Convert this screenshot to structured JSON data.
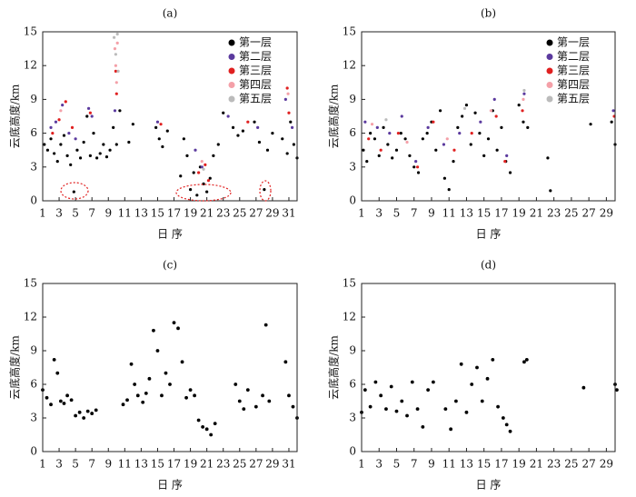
{
  "chart_data": [
    {
      "type": "scatter",
      "title": "(a)",
      "ylabel": "云底高度/km",
      "xlabel": "日 序",
      "xlim": [
        1,
        32
      ],
      "ylim": [
        0,
        15
      ],
      "xticks": [
        1,
        3,
        5,
        7,
        9,
        11,
        13,
        15,
        17,
        19,
        21,
        23,
        25,
        27,
        29,
        31
      ],
      "yticks": [
        0,
        3,
        6,
        9,
        12,
        15
      ],
      "legend": "upper right",
      "series": [
        {
          "name": "第一层",
          "color": "#000000",
          "x": [
            1.2,
            1.6,
            2.0,
            2.4,
            2.8,
            3.2,
            3.6,
            4.0,
            4.4,
            4.8,
            5.2,
            5.6,
            6.0,
            6.4,
            6.8,
            7.2,
            7.6,
            8.0,
            8.4,
            8.8,
            9.2,
            9.6,
            10.0,
            10.4,
            11.5,
            12.0,
            14.8,
            15.2,
            15.6,
            16.2,
            17.8,
            18.2,
            18.6,
            19.0,
            19.4,
            19.8,
            20.2,
            20.6,
            21.0,
            21.4,
            21.8,
            22.4,
            23.0,
            24.2,
            24.8,
            25.4,
            26.8,
            27.4,
            28.0,
            28.4,
            29.0,
            30.2,
            30.8,
            31.2,
            31.6,
            32.0
          ],
          "values": [
            5.0,
            4.5,
            5.5,
            4.2,
            3.5,
            5.0,
            5.8,
            4.0,
            3.2,
            0.8,
            4.5,
            3.8,
            5.2,
            7.5,
            4.0,
            6.0,
            3.8,
            4.2,
            5.0,
            3.9,
            4.5,
            6.5,
            5.0,
            8.0,
            5.2,
            6.8,
            6.5,
            5.5,
            4.8,
            6.2,
            2.2,
            5.5,
            4.0,
            1.0,
            2.5,
            0.5,
            3.0,
            1.5,
            0.8,
            2.0,
            4.0,
            5.0,
            7.8,
            6.5,
            5.8,
            6.2,
            7.0,
            5.2,
            1.0,
            4.5,
            6.0,
            5.5,
            4.2,
            7.0,
            5.0,
            3.8
          ]
        },
        {
          "name": "第二层",
          "color": "#5b3a9e",
          "x": [
            2.0,
            2.6,
            3.4,
            4.2,
            5.0,
            6.6,
            7.0,
            9.8,
            15.0,
            19.6,
            20.4,
            23.6,
            27.2,
            30.6,
            31.4
          ],
          "values": [
            6.5,
            7.0,
            8.5,
            6.0,
            5.5,
            8.2,
            7.5,
            8.0,
            7.0,
            4.5,
            3.0,
            7.5,
            6.5,
            9.0,
            6.5
          ]
        },
        {
          "name": "第三层",
          "color": "#e02020",
          "x": [
            2.2,
            3.0,
            3.8,
            4.6,
            6.8,
            9.9,
            10.0,
            15.4,
            20.0,
            20.8,
            21.2,
            26.0,
            30.8,
            31.0
          ],
          "values": [
            6.0,
            7.2,
            8.8,
            6.5,
            7.8,
            11.5,
            9.5,
            6.8,
            2.5,
            3.2,
            1.8,
            7.0,
            10.0,
            7.8
          ]
        },
        {
          "name": "第四层",
          "color": "#f4a0a8",
          "x": [
            3.2,
            9.8,
            9.9,
            10.0,
            10.1,
            20.4,
            30.9
          ],
          "values": [
            8.0,
            13.5,
            12.0,
            10.5,
            14.0,
            3.5,
            9.5
          ]
        },
        {
          "name": "第五层",
          "color": "#bbbbbb",
          "x": [
            9.7,
            9.9,
            10.1,
            10.2,
            20.6
          ],
          "values": [
            14.5,
            13.0,
            14.8,
            11.5,
            2.8
          ]
        }
      ]
    },
    {
      "type": "scatter",
      "title": "(b)",
      "ylabel": "云底高度/km",
      "xlabel": "日 序",
      "xlim": [
        1,
        30
      ],
      "ylim": [
        0,
        15
      ],
      "xticks": [
        1,
        3,
        5,
        7,
        9,
        11,
        13,
        15,
        17,
        19,
        21,
        23,
        25,
        27,
        29
      ],
      "yticks": [
        0,
        3,
        6,
        9,
        12,
        15
      ],
      "legend": "upper right",
      "series": [
        {
          "name": "第一层",
          "color": "#000000",
          "x": [
            1.2,
            1.6,
            2.0,
            2.5,
            3.0,
            3.5,
            4.0,
            4.5,
            5.0,
            5.5,
            6.0,
            6.5,
            7.0,
            7.5,
            8.0,
            8.5,
            9.0,
            9.5,
            10.0,
            10.5,
            11.0,
            11.5,
            12.0,
            12.5,
            13.0,
            13.5,
            14.0,
            14.5,
            15.0,
            15.5,
            16.0,
            16.5,
            17.0,
            17.5,
            18.0,
            19.0,
            19.5,
            20.0,
            22.3,
            22.6,
            27.2,
            29.6,
            30.0
          ],
          "values": [
            4.5,
            3.5,
            6.0,
            5.5,
            4.0,
            6.5,
            5.0,
            3.8,
            4.5,
            6.0,
            5.5,
            4.0,
            3.0,
            2.5,
            5.5,
            6.0,
            7.0,
            4.5,
            8.0,
            2.0,
            1.0,
            3.5,
            6.5,
            7.5,
            8.5,
            5.0,
            7.8,
            6.0,
            4.0,
            5.5,
            8.0,
            4.5,
            6.5,
            3.5,
            2.5,
            8.5,
            7.0,
            6.5,
            3.8,
            0.9,
            6.8,
            7.0,
            5.0
          ]
        },
        {
          "name": "第二层",
          "color": "#5b3a9e",
          "x": [
            1.4,
            2.8,
            4.2,
            5.6,
            7.2,
            8.6,
            10.4,
            12.2,
            14.6,
            16.2,
            17.6,
            19.6,
            29.8
          ],
          "values": [
            7.0,
            6.5,
            6.0,
            7.5,
            3.5,
            6.5,
            5.0,
            6.0,
            7.0,
            9.0,
            4.0,
            9.5,
            8.0
          ]
        },
        {
          "name": "第三层",
          "color": "#e02020",
          "x": [
            1.8,
            3.2,
            5.2,
            7.4,
            9.2,
            11.6,
            13.6,
            16.4,
            17.4,
            19.4,
            29.9
          ],
          "values": [
            5.5,
            4.5,
            6.0,
            3.0,
            7.0,
            4.5,
            6.0,
            7.5,
            3.5,
            8.0,
            7.5
          ]
        },
        {
          "name": "第四层",
          "color": "#f4a0a8",
          "x": [
            2.2,
            6.2,
            10.8,
            15.8,
            19.5
          ],
          "values": [
            6.8,
            5.2,
            5.5,
            8.0,
            9.0
          ]
        },
        {
          "name": "第五层",
          "color": "#bbbbbb",
          "x": [
            3.8,
            12.8,
            19.6
          ],
          "values": [
            7.2,
            8.2,
            9.8
          ]
        }
      ]
    },
    {
      "type": "scatter",
      "title": "(c)",
      "ylabel": "云底高度/km",
      "xlabel": "日 序",
      "xlim": [
        1,
        32
      ],
      "ylim": [
        0,
        15
      ],
      "xticks": [
        1,
        3,
        5,
        7,
        9,
        11,
        13,
        15,
        17,
        19,
        21,
        23,
        25,
        27,
        29,
        31
      ],
      "yticks": [
        0,
        3,
        6,
        9,
        12,
        15
      ],
      "series": [
        {
          "color": "#000000",
          "x": [
            1.0,
            1.5,
            2.0,
            2.4,
            2.8,
            3.2,
            3.6,
            4.0,
            4.5,
            5.0,
            5.5,
            6.0,
            6.5,
            7.0,
            7.5,
            10.8,
            11.3,
            11.8,
            12.2,
            12.6,
            13.2,
            13.6,
            14.0,
            14.5,
            15.0,
            15.5,
            16.0,
            16.5,
            17.0,
            17.5,
            18.0,
            18.5,
            19.0,
            19.5,
            20.0,
            20.5,
            21.0,
            21.5,
            22.0,
            24.5,
            25.0,
            25.5,
            26.0,
            27.0,
            27.8,
            28.2,
            28.6,
            30.6,
            31.0,
            31.5,
            32.0
          ],
          "values": [
            5.5,
            4.8,
            4.2,
            8.2,
            7.0,
            4.5,
            4.3,
            5.0,
            4.6,
            3.2,
            3.5,
            3.0,
            3.6,
            3.4,
            3.7,
            4.2,
            4.6,
            7.8,
            6.0,
            5.0,
            4.4,
            5.2,
            6.5,
            10.8,
            9.0,
            5.0,
            7.0,
            6.0,
            11.5,
            11.0,
            8.0,
            4.8,
            5.5,
            5.0,
            2.8,
            2.2,
            2.0,
            1.5,
            2.5,
            6.0,
            4.5,
            3.8,
            5.5,
            4.0,
            5.0,
            11.3,
            4.5,
            8.0,
            5.0,
            4.0,
            3.0
          ]
        }
      ]
    },
    {
      "type": "scatter",
      "title": "(d)",
      "ylabel": "云底高度/km",
      "xlabel": "日 序",
      "xlim": [
        1,
        30
      ],
      "ylim": [
        0,
        15
      ],
      "xticks": [
        1,
        3,
        5,
        7,
        9,
        11,
        13,
        15,
        17,
        19,
        21,
        23,
        25,
        27,
        29
      ],
      "yticks": [
        0,
        3,
        6,
        9,
        12,
        15
      ],
      "series": [
        {
          "color": "#000000",
          "x": [
            1.0,
            1.4,
            2.0,
            2.6,
            3.2,
            3.8,
            4.4,
            5.0,
            5.6,
            6.2,
            6.8,
            7.4,
            8.0,
            8.6,
            9.2,
            10.6,
            11.2,
            11.8,
            12.4,
            13.0,
            13.6,
            14.2,
            14.8,
            15.4,
            16.0,
            16.6,
            17.2,
            17.6,
            18.0,
            19.6,
            19.9,
            26.4,
            30.0,
            30.2
          ],
          "values": [
            3.5,
            5.5,
            4.0,
            6.2,
            5.0,
            3.8,
            5.8,
            3.6,
            4.5,
            3.2,
            6.2,
            3.8,
            2.2,
            5.5,
            6.2,
            3.8,
            2.0,
            4.5,
            7.8,
            3.5,
            6.0,
            7.5,
            4.5,
            6.5,
            8.2,
            4.0,
            3.0,
            2.4,
            1.8,
            8.0,
            8.2,
            5.7,
            6.0,
            5.5
          ]
        }
      ]
    }
  ]
}
